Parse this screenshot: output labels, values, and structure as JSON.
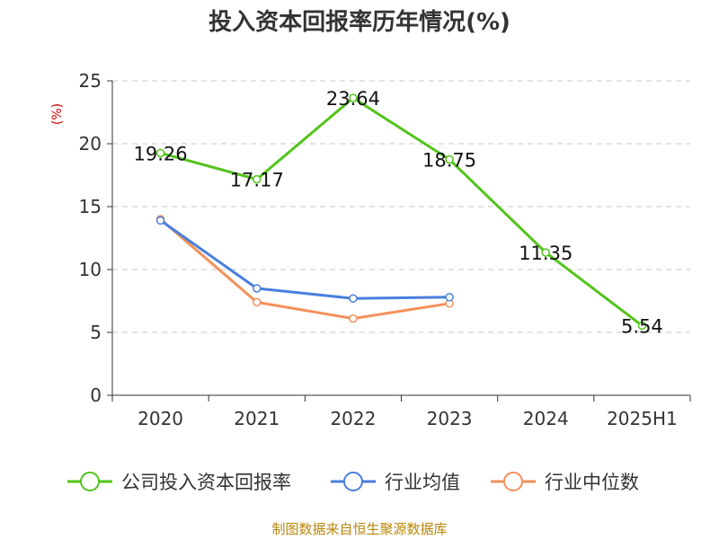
{
  "chart_data": {
    "type": "line",
    "title": "投入资本回报率历年情况(%)",
    "ylabel": "(%)",
    "xlabel": "",
    "categories": [
      "2020",
      "2021",
      "2022",
      "2023",
      "2024",
      "2025H1"
    ],
    "ylim": [
      0,
      25
    ],
    "yticks": [
      0,
      5,
      10,
      15,
      20,
      25
    ],
    "grid": true,
    "legend_position": "bottom",
    "series": [
      {
        "name": "公司投入资本回报率",
        "color": "#52c41a",
        "values": [
          19.26,
          17.17,
          23.64,
          18.75,
          11.35,
          5.54
        ],
        "labels": [
          "19.26",
          "17.17",
          "23.64",
          "18.75",
          "11.35",
          "5.54"
        ]
      },
      {
        "name": "行业均值",
        "color": "#4a7fdc",
        "values": [
          13.9,
          8.5,
          7.7,
          7.8,
          null,
          null
        ]
      },
      {
        "name": "行业中位数",
        "color": "#f5905a",
        "values": [
          14.0,
          7.4,
          6.1,
          7.3,
          null,
          null
        ]
      }
    ]
  },
  "footer": {
    "source": "制图数据来自恒生聚源数据库"
  }
}
